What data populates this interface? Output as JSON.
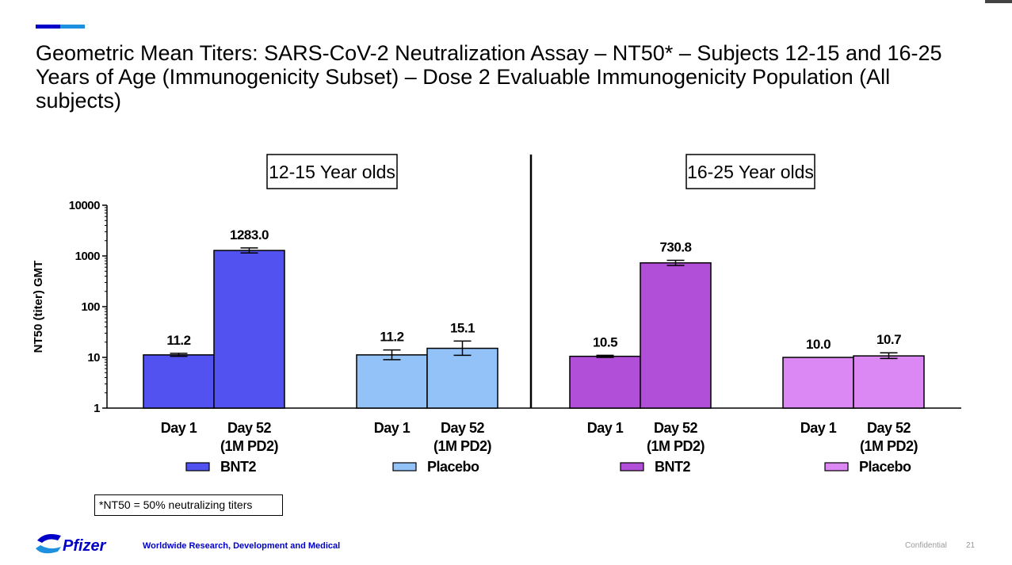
{
  "title": "Geometric Mean Titers: SARS-CoV-2 Neutralization Assay – NT50* – Subjects 12-15 and 16-25 Years of Age (Immunogenicity Subset) – Dose 2 Evaluable Immunogenicity Population (All subjects)",
  "footnote": "*NT50 = 50% neutralizing titers",
  "footer": {
    "logo_text": "Pfizer",
    "org": "Worldwide Research, Development and Medical",
    "confidential": "Confidential",
    "page_number": "21"
  },
  "colors": {
    "accent_blue": "#0000c9",
    "accent_light": "#1e90e0",
    "bnt2_12_15": "#5252f0",
    "placebo_12_15": "#93c2f8",
    "bnt2_16_25": "#b24fd8",
    "placebo_16_25": "#dc88f4"
  },
  "chart_data": {
    "type": "bar",
    "ylabel": "NT50 (titer) GMT",
    "yscale": "log",
    "ylim": [
      1,
      10000
    ],
    "yticks": [
      "1",
      "10",
      "100",
      "1000",
      "10000"
    ],
    "panels": [
      {
        "label": "12-15 Year olds",
        "groups": [
          {
            "name": "BNT2",
            "color": "#5252f0",
            "bars": [
              {
                "category": [
                  "Day 1"
                ],
                "value": 11.2,
                "label": "11.2",
                "err_low": 10.5,
                "err_high": 12.0
              },
              {
                "category": [
                  "Day 52",
                  "(1M PD2)"
                ],
                "value": 1283.0,
                "label": "1283.0",
                "err_low": 1145,
                "err_high": 1440
              }
            ]
          },
          {
            "name": "Placebo",
            "color": "#93c2f8",
            "bars": [
              {
                "category": [
                  "Day 1"
                ],
                "value": 11.2,
                "label": "11.2",
                "err_low": 9.0,
                "err_high": 14.0
              },
              {
                "category": [
                  "Day 52",
                  "(1M PD2)"
                ],
                "value": 15.1,
                "label": "15.1",
                "err_low": 11.0,
                "err_high": 21.0
              }
            ]
          }
        ]
      },
      {
        "label": "16-25 Year olds",
        "groups": [
          {
            "name": "BNT2",
            "color": "#b24fd8",
            "bars": [
              {
                "category": [
                  "Day 1"
                ],
                "value": 10.5,
                "label": "10.5",
                "err_low": 10.0,
                "err_high": 11.0
              },
              {
                "category": [
                  "Day 52",
                  "(1M PD2)"
                ],
                "value": 730.8,
                "label": "730.8",
                "err_low": 650,
                "err_high": 820
              }
            ]
          },
          {
            "name": "Placebo",
            "color": "#dc88f4",
            "bars": [
              {
                "category": [
                  "Day 1"
                ],
                "value": 10.0,
                "label": "10.0",
                "err_low": 10.0,
                "err_high": 10.0
              },
              {
                "category": [
                  "Day 52",
                  "(1M PD2)"
                ],
                "value": 10.7,
                "label": "10.7",
                "err_low": 9.5,
                "err_high": 12.3
              }
            ]
          }
        ]
      }
    ]
  }
}
